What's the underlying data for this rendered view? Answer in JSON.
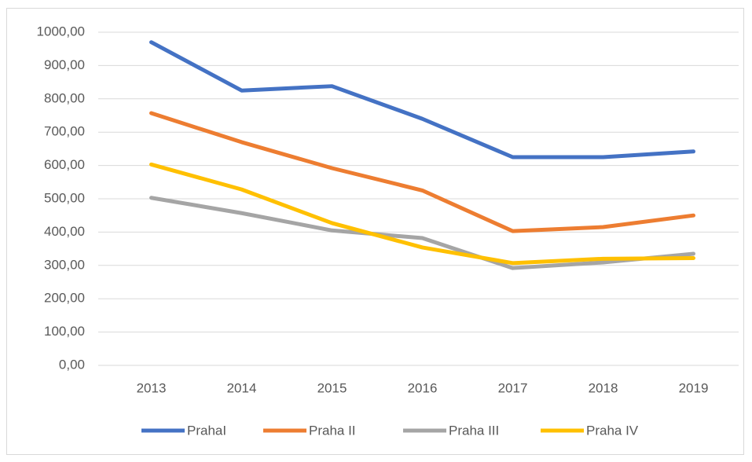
{
  "chart_data": {
    "type": "line",
    "categories": [
      "2013",
      "2014",
      "2015",
      "2016",
      "2017",
      "2018",
      "2019"
    ],
    "series": [
      {
        "name": "PrahaI",
        "color": "#4472c4",
        "values": [
          970,
          825,
          838,
          740,
          625,
          625,
          642
        ]
      },
      {
        "name": "Praha II",
        "color": "#ed7d31",
        "values": [
          757,
          670,
          592,
          525,
          403,
          415,
          450
        ]
      },
      {
        "name": "Praha III",
        "color": "#a5a5a5",
        "values": [
          503,
          457,
          405,
          382,
          292,
          309,
          335
        ]
      },
      {
        "name": "Praha IV",
        "color": "#ffc000",
        "values": [
          603,
          528,
          427,
          354,
          307,
          320,
          322
        ]
      }
    ],
    "ylim": [
      0,
      1000
    ],
    "yticks": [
      {
        "value": 0,
        "label": "0,00"
      },
      {
        "value": 100,
        "label": "100,00"
      },
      {
        "value": 200,
        "label": "200,00"
      },
      {
        "value": 300,
        "label": "300,00"
      },
      {
        "value": 400,
        "label": "400,00"
      },
      {
        "value": 500,
        "label": "500,00"
      },
      {
        "value": 600,
        "label": "600,00"
      },
      {
        "value": 700,
        "label": "700,00"
      },
      {
        "value": 800,
        "label": "800,00"
      },
      {
        "value": 900,
        "label": "900,00"
      },
      {
        "value": 1000,
        "label": "1000,00"
      }
    ],
    "grid": true,
    "legend": "bottom"
  }
}
